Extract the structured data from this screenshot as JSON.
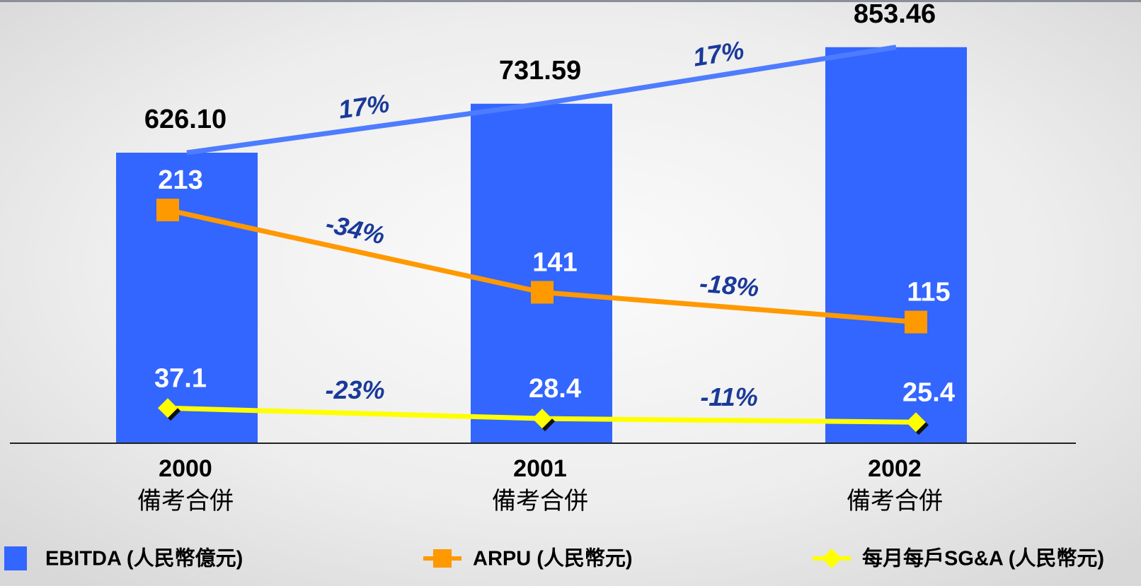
{
  "chart_data": {
    "type": "bar",
    "categories": [
      "2000",
      "2001",
      "2002"
    ],
    "subcategories": [
      "備考合併",
      "備考合併",
      "備考合併"
    ],
    "ylim": [
      0,
      914
    ],
    "series": [
      {
        "name": "EBITDA (人民幣億元)",
        "type": "bar",
        "color": "#3366ff",
        "values": [
          626.1,
          731.59,
          853.46
        ],
        "value_labels": [
          "626.10",
          "731.59",
          "853.46"
        ],
        "annotations": [
          "17%",
          "17%"
        ],
        "ylim": [
          0,
          914
        ]
      },
      {
        "name": "ARPU (人民幣元)",
        "type": "line",
        "marker": "square",
        "color": "#ff9900",
        "values": [
          213,
          141,
          115
        ],
        "annotations": [
          "-34%",
          "-18%"
        ],
        "ylim": [
          9,
          380
        ]
      },
      {
        "name": "每月每戶SG&A (人民幣元)",
        "type": "line",
        "marker": "diamond",
        "color": "#ffff00",
        "values": [
          37.1,
          28.4,
          25.4
        ],
        "annotations": [
          "-23%",
          "-11%"
        ],
        "ylim": [
          8,
          359
        ]
      }
    ]
  }
}
